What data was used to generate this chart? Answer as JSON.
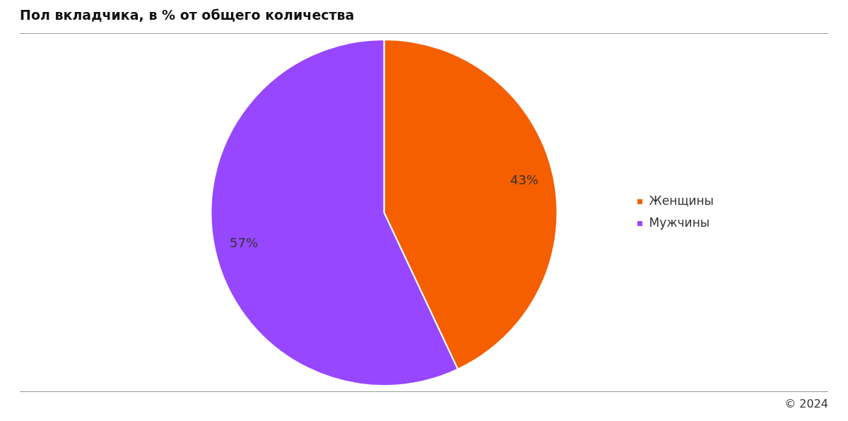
{
  "chart_data": {
    "type": "pie",
    "title": "Пол вкладчика, в % от общего количества",
    "categories": [
      "Женщины",
      "Мужчины"
    ],
    "values": [
      43,
      57
    ],
    "colors": [
      "#f55f00",
      "#9747ff"
    ],
    "value_labels": [
      "43%",
      "57%"
    ],
    "legend": "right",
    "annotations": [
      "© 2024"
    ]
  }
}
